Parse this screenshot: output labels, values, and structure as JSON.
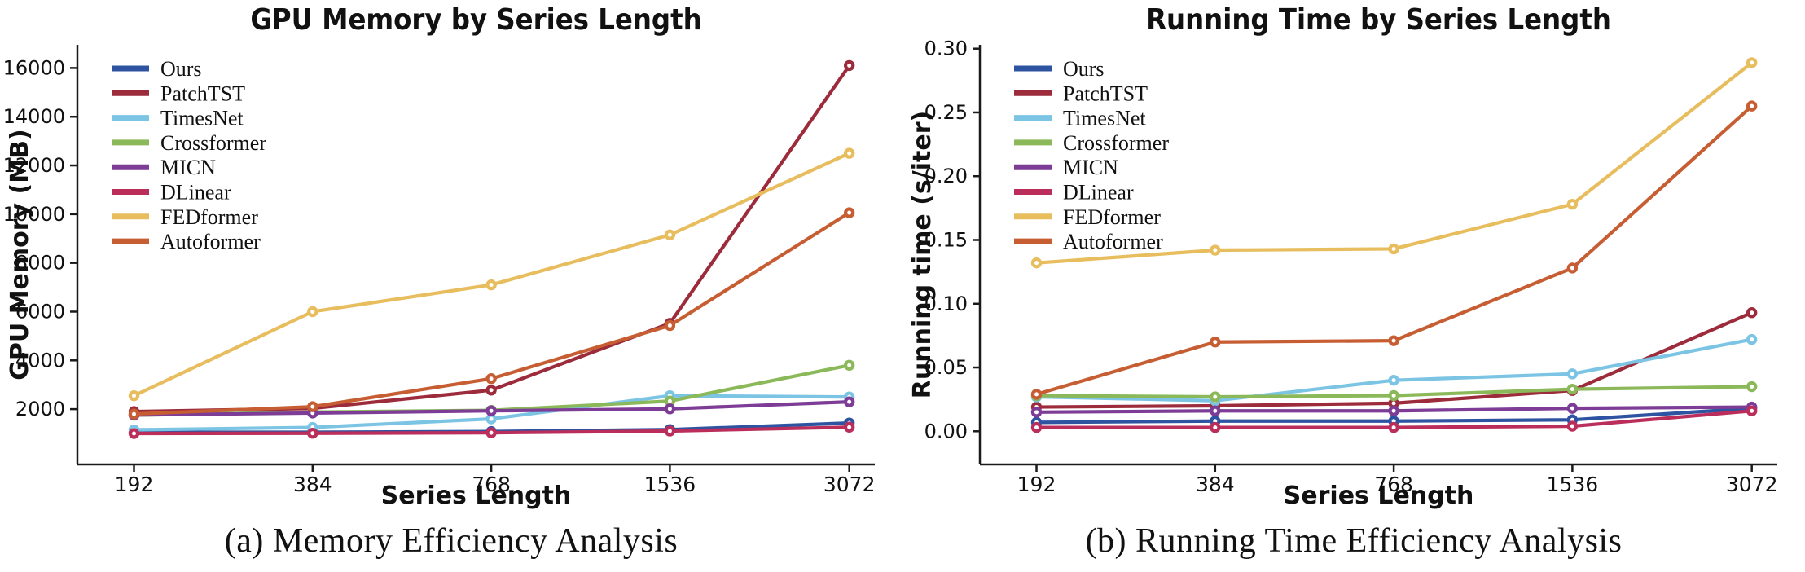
{
  "figure_caption_a": "(a) Memory Efficiency Analysis",
  "figure_caption_b": "(b) Running Time Efficiency Analysis",
  "axis_color": "#1a1a1a",
  "background_color": "#ffffff",
  "chart_data": [
    {
      "type": "line",
      "title": "GPU Memory by Series Length",
      "xlabel": "Series Length",
      "ylabel": "GPU Memory (MB)",
      "caption": "(a) Memory Efficiency Analysis",
      "categories": [
        "192",
        "384",
        "768",
        "1536",
        "3072"
      ],
      "ylim": [
        -270,
        16950
      ],
      "yticks": [
        2000,
        4000,
        6000,
        8000,
        10000,
        12000,
        14000,
        16000
      ],
      "ytick_labels": [
        "2000",
        "4000",
        "6000",
        "8000",
        "10000",
        "12000",
        "14000",
        "16000"
      ],
      "grid": false,
      "legend_position": "upper left",
      "series": [
        {
          "name": "Ours",
          "color": "#2e54a1",
          "values": [
            1050,
            1050,
            1080,
            1160,
            1430
          ]
        },
        {
          "name": "PatchTST",
          "color": "#9c2c3b",
          "values": [
            1900,
            2030,
            2780,
            5520,
            16100
          ]
        },
        {
          "name": "TimesNet",
          "color": "#7cc4e4",
          "values": [
            1150,
            1250,
            1600,
            2550,
            2500
          ]
        },
        {
          "name": "Crossformer",
          "color": "#8bb95a",
          "values": [
            1750,
            1880,
            1950,
            2330,
            3800
          ]
        },
        {
          "name": "MICN",
          "color": "#7d3c96",
          "values": [
            1760,
            1840,
            1930,
            2010,
            2300
          ]
        },
        {
          "name": "DLinear",
          "color": "#bb2e5c",
          "values": [
            1000,
            1010,
            1030,
            1100,
            1260
          ]
        },
        {
          "name": "FEDformer",
          "color": "#e7bd5e",
          "values": [
            2550,
            6000,
            7100,
            9150,
            12500
          ]
        },
        {
          "name": "Autoformer",
          "color": "#c75e33",
          "values": [
            1800,
            2100,
            3250,
            5430,
            10060
          ]
        }
      ]
    },
    {
      "type": "line",
      "title": "Running Time by Series Length",
      "xlabel": "Series Length",
      "ylabel": "Running time (s/iter)",
      "caption": "(b) Running Time Efficiency Analysis",
      "categories": [
        "192",
        "384",
        "768",
        "1536",
        "3072"
      ],
      "ylim": [
        -0.026,
        0.303
      ],
      "yticks": [
        0.0,
        0.05,
        0.1,
        0.15,
        0.2,
        0.25,
        0.3
      ],
      "ytick_labels": [
        "0.00",
        "0.05",
        "0.10",
        "0.15",
        "0.20",
        "0.25",
        "0.30"
      ],
      "grid": false,
      "legend_position": "upper left",
      "series": [
        {
          "name": "Ours",
          "color": "#2e54a1",
          "values": [
            0.007,
            0.008,
            0.008,
            0.009,
            0.018
          ]
        },
        {
          "name": "PatchTST",
          "color": "#9c2c3b",
          "values": [
            0.019,
            0.02,
            0.022,
            0.032,
            0.093
          ]
        },
        {
          "name": "TimesNet",
          "color": "#7cc4e4",
          "values": [
            0.027,
            0.024,
            0.04,
            0.045,
            0.072
          ]
        },
        {
          "name": "Crossformer",
          "color": "#8bb95a",
          "values": [
            0.028,
            0.027,
            0.028,
            0.033,
            0.035
          ]
        },
        {
          "name": "MICN",
          "color": "#7d3c96",
          "values": [
            0.015,
            0.016,
            0.016,
            0.018,
            0.019
          ]
        },
        {
          "name": "DLinear",
          "color": "#bb2e5c",
          "values": [
            0.003,
            0.003,
            0.003,
            0.004,
            0.016
          ]
        },
        {
          "name": "FEDformer",
          "color": "#e7bd5e",
          "values": [
            0.132,
            0.142,
            0.143,
            0.178,
            0.289
          ]
        },
        {
          "name": "Autoformer",
          "color": "#c75e33",
          "values": [
            0.029,
            0.07,
            0.071,
            0.128,
            0.255
          ]
        }
      ]
    }
  ]
}
